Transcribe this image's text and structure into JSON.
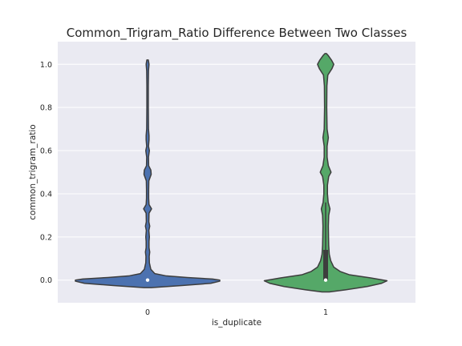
{
  "chart_data": {
    "type": "violin",
    "title": "Common_Trigram_Ratio Difference Between Two Classes",
    "xlabel": "is_duplicate",
    "ylabel": "common_trigram_ratio",
    "categories": [
      "0",
      "1"
    ],
    "ylim": [
      -0.105,
      1.105
    ],
    "yticks": [
      0.0,
      0.2,
      0.4,
      0.6,
      0.8,
      1.0
    ],
    "ytick_labels": [
      "0.0",
      "0.2",
      "0.4",
      "0.6",
      "0.8",
      "1.0"
    ],
    "grid": true,
    "colors": {
      "0": "#4c72b0",
      "1": "#55a868"
    },
    "series": [
      {
        "category": "0",
        "median": 0.0,
        "q1": 0.0,
        "q3": 0.0,
        "whisker_low": 0.0,
        "whisker_high": 0.0,
        "density": [
          [
            -0.035,
            0.02
          ],
          [
            -0.025,
            0.19
          ],
          [
            -0.015,
            0.35
          ],
          [
            -0.005,
            0.4
          ],
          [
            0.0,
            0.4
          ],
          [
            0.005,
            0.36
          ],
          [
            0.012,
            0.22
          ],
          [
            0.02,
            0.1
          ],
          [
            0.03,
            0.04
          ],
          [
            0.05,
            0.018
          ],
          [
            0.08,
            0.01
          ],
          [
            0.11,
            0.009
          ],
          [
            0.13,
            0.012
          ],
          [
            0.15,
            0.008
          ],
          [
            0.18,
            0.008
          ],
          [
            0.2,
            0.01
          ],
          [
            0.23,
            0.007
          ],
          [
            0.25,
            0.012
          ],
          [
            0.27,
            0.007
          ],
          [
            0.31,
            0.008
          ],
          [
            0.33,
            0.022
          ],
          [
            0.35,
            0.008
          ],
          [
            0.38,
            0.006
          ],
          [
            0.42,
            0.006
          ],
          [
            0.46,
            0.007
          ],
          [
            0.49,
            0.02
          ],
          [
            0.51,
            0.018
          ],
          [
            0.53,
            0.006
          ],
          [
            0.57,
            0.005
          ],
          [
            0.6,
            0.01
          ],
          [
            0.62,
            0.005
          ],
          [
            0.65,
            0.008
          ],
          [
            0.67,
            0.008
          ],
          [
            0.7,
            0.005
          ],
          [
            0.8,
            0.004
          ],
          [
            0.9,
            0.004
          ],
          [
            0.97,
            0.005
          ],
          [
            1.0,
            0.008
          ],
          [
            1.02,
            0.004
          ]
        ]
      },
      {
        "category": "1",
        "median": 0.0,
        "q1": 0.0,
        "q3": 0.14,
        "whisker_low": 0.0,
        "whisker_high": 0.36,
        "density": [
          [
            -0.055,
            0.02
          ],
          [
            -0.045,
            0.11
          ],
          [
            -0.03,
            0.23
          ],
          [
            -0.015,
            0.31
          ],
          [
            -0.003,
            0.34
          ],
          [
            0.01,
            0.25
          ],
          [
            0.025,
            0.13
          ],
          [
            0.04,
            0.08
          ],
          [
            0.06,
            0.045
          ],
          [
            0.09,
            0.028
          ],
          [
            0.12,
            0.02
          ],
          [
            0.16,
            0.017
          ],
          [
            0.2,
            0.016
          ],
          [
            0.25,
            0.015
          ],
          [
            0.3,
            0.017
          ],
          [
            0.33,
            0.024
          ],
          [
            0.36,
            0.014
          ],
          [
            0.4,
            0.01
          ],
          [
            0.44,
            0.01
          ],
          [
            0.48,
            0.017
          ],
          [
            0.5,
            0.03
          ],
          [
            0.53,
            0.015
          ],
          [
            0.57,
            0.008
          ],
          [
            0.62,
            0.008
          ],
          [
            0.66,
            0.015
          ],
          [
            0.7,
            0.008
          ],
          [
            0.8,
            0.006
          ],
          [
            0.9,
            0.007
          ],
          [
            0.95,
            0.012
          ],
          [
            0.98,
            0.035
          ],
          [
            1.0,
            0.045
          ],
          [
            1.02,
            0.032
          ],
          [
            1.04,
            0.015
          ],
          [
            1.05,
            0.004
          ]
        ]
      }
    ]
  }
}
